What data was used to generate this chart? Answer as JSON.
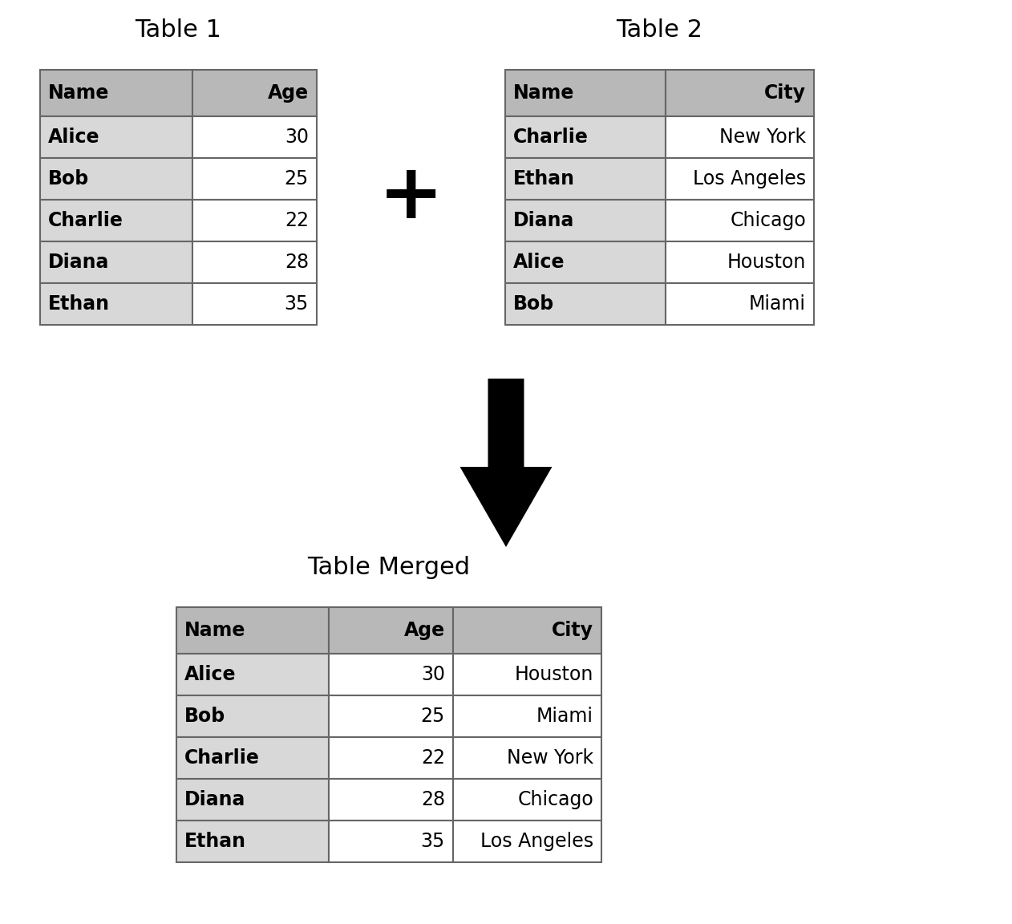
{
  "table1_title": "Table 1",
  "table2_title": "Table 2",
  "merged_title": "Table Merged",
  "table1_headers": [
    "Name",
    "Age"
  ],
  "table1_rows": [
    [
      "Alice",
      "30"
    ],
    [
      "Bob",
      "25"
    ],
    [
      "Charlie",
      "22"
    ],
    [
      "Diana",
      "28"
    ],
    [
      "Ethan",
      "35"
    ]
  ],
  "table2_headers": [
    "Name",
    "City"
  ],
  "table2_rows": [
    [
      "Charlie",
      "New York"
    ],
    [
      "Ethan",
      "Los Angeles"
    ],
    [
      "Diana",
      "Chicago"
    ],
    [
      "Alice",
      "Houston"
    ],
    [
      "Bob",
      "Miami"
    ]
  ],
  "merged_headers": [
    "Name",
    "Age",
    "City"
  ],
  "merged_rows": [
    [
      "Alice",
      "30",
      "Houston"
    ],
    [
      "Bob",
      "25",
      "Miami"
    ],
    [
      "Charlie",
      "22",
      "New York"
    ],
    [
      "Diana",
      "28",
      "Chicago"
    ],
    [
      "Ethan",
      "35",
      "Los Angeles"
    ]
  ],
  "header_color": "#b8b8b8",
  "name_col_color": "#d8d8d8",
  "data_col_color": "#ffffff",
  "border_color": "#666666",
  "text_color": "#000000",
  "background_color": "#ffffff",
  "title_fontsize": 22,
  "header_fontsize": 17,
  "cell_fontsize": 17
}
